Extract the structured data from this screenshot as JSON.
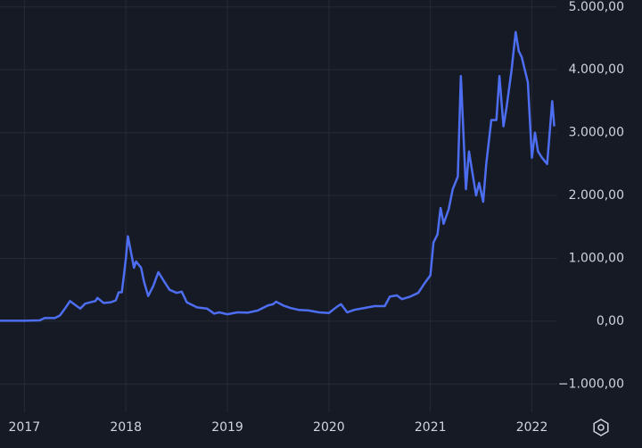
{
  "chart_data": {
    "type": "line",
    "x": [
      2016.76,
      2017.0,
      2017.15,
      2017.2,
      2017.3,
      2017.35,
      2017.4,
      2017.45,
      2017.5,
      2017.55,
      2017.6,
      2017.7,
      2017.72,
      2017.78,
      2017.85,
      2017.9,
      2017.93,
      2017.96,
      2017.98,
      2018.0,
      2018.02,
      2018.05,
      2018.08,
      2018.1,
      2018.15,
      2018.18,
      2018.22,
      2018.27,
      2018.32,
      2018.37,
      2018.43,
      2018.5,
      2018.55,
      2018.6,
      2018.7,
      2018.75,
      2018.8,
      2018.87,
      2018.92,
      2019.0,
      2019.1,
      2019.2,
      2019.3,
      2019.4,
      2019.45,
      2019.48,
      2019.55,
      2019.62,
      2019.7,
      2019.8,
      2019.9,
      2020.0,
      2020.08,
      2020.12,
      2020.18,
      2020.25,
      2020.35,
      2020.45,
      2020.55,
      2020.6,
      2020.67,
      2020.72,
      2020.8,
      2020.88,
      2020.95,
      2021.0,
      2021.03,
      2021.07,
      2021.1,
      2021.13,
      2021.18,
      2021.22,
      2021.27,
      2021.3,
      2021.35,
      2021.38,
      2021.42,
      2021.45,
      2021.48,
      2021.52,
      2021.55,
      2021.6,
      2021.65,
      2021.68,
      2021.72,
      2021.75,
      2021.8,
      2021.84,
      2021.87,
      2021.9,
      2021.93,
      2021.96,
      2022.0,
      2022.03,
      2022.06,
      2022.1,
      2022.15,
      2022.2,
      2022.22
    ],
    "series": [
      {
        "color": "#4e6ef2",
        "values": [
          8,
          8,
          12,
          50,
          50,
          90,
          200,
          320,
          260,
          200,
          280,
          320,
          370,
          290,
          300,
          330,
          460,
          460,
          720,
          1000,
          1350,
          1100,
          850,
          950,
          850,
          620,
          400,
          560,
          780,
          650,
          500,
          450,
          470,
          300,
          220,
          210,
          200,
          120,
          140,
          110,
          140,
          135,
          170,
          250,
          270,
          310,
          250,
          210,
          180,
          170,
          140,
          130,
          230,
          270,
          140,
          180,
          210,
          240,
          240,
          390,
          410,
          350,
          390,
          450,
          620,
          730,
          1250,
          1380,
          1800,
          1550,
          1780,
          2100,
          2300,
          3900,
          2100,
          2700,
          2300,
          2000,
          2200,
          1900,
          2500,
          3200,
          3200,
          3900,
          3100,
          3400,
          4000,
          4600,
          4300,
          4200,
          4000,
          3800,
          2600,
          3000,
          2700,
          2600,
          2500,
          3500,
          3100
        ]
      }
    ],
    "xlim": [
      2016.76,
      2022.25
    ],
    "xticks": [
      2017,
      2018,
      2019,
      2020,
      2021,
      2022
    ],
    "ylim": [
      -1450,
      5110
    ],
    "yticks": [
      {
        "value": -1000,
        "label": "−1.000,00"
      },
      {
        "value": 0,
        "label": "0,00"
      },
      {
        "value": 1000,
        "label": "1.000,00"
      },
      {
        "value": 2000,
        "label": "2.000,00"
      },
      {
        "value": 3000,
        "label": "3.000,00"
      },
      {
        "value": 4000,
        "label": "4.000,00"
      },
      {
        "value": 5000,
        "label": "5.000,00"
      }
    ],
    "grid": true
  }
}
